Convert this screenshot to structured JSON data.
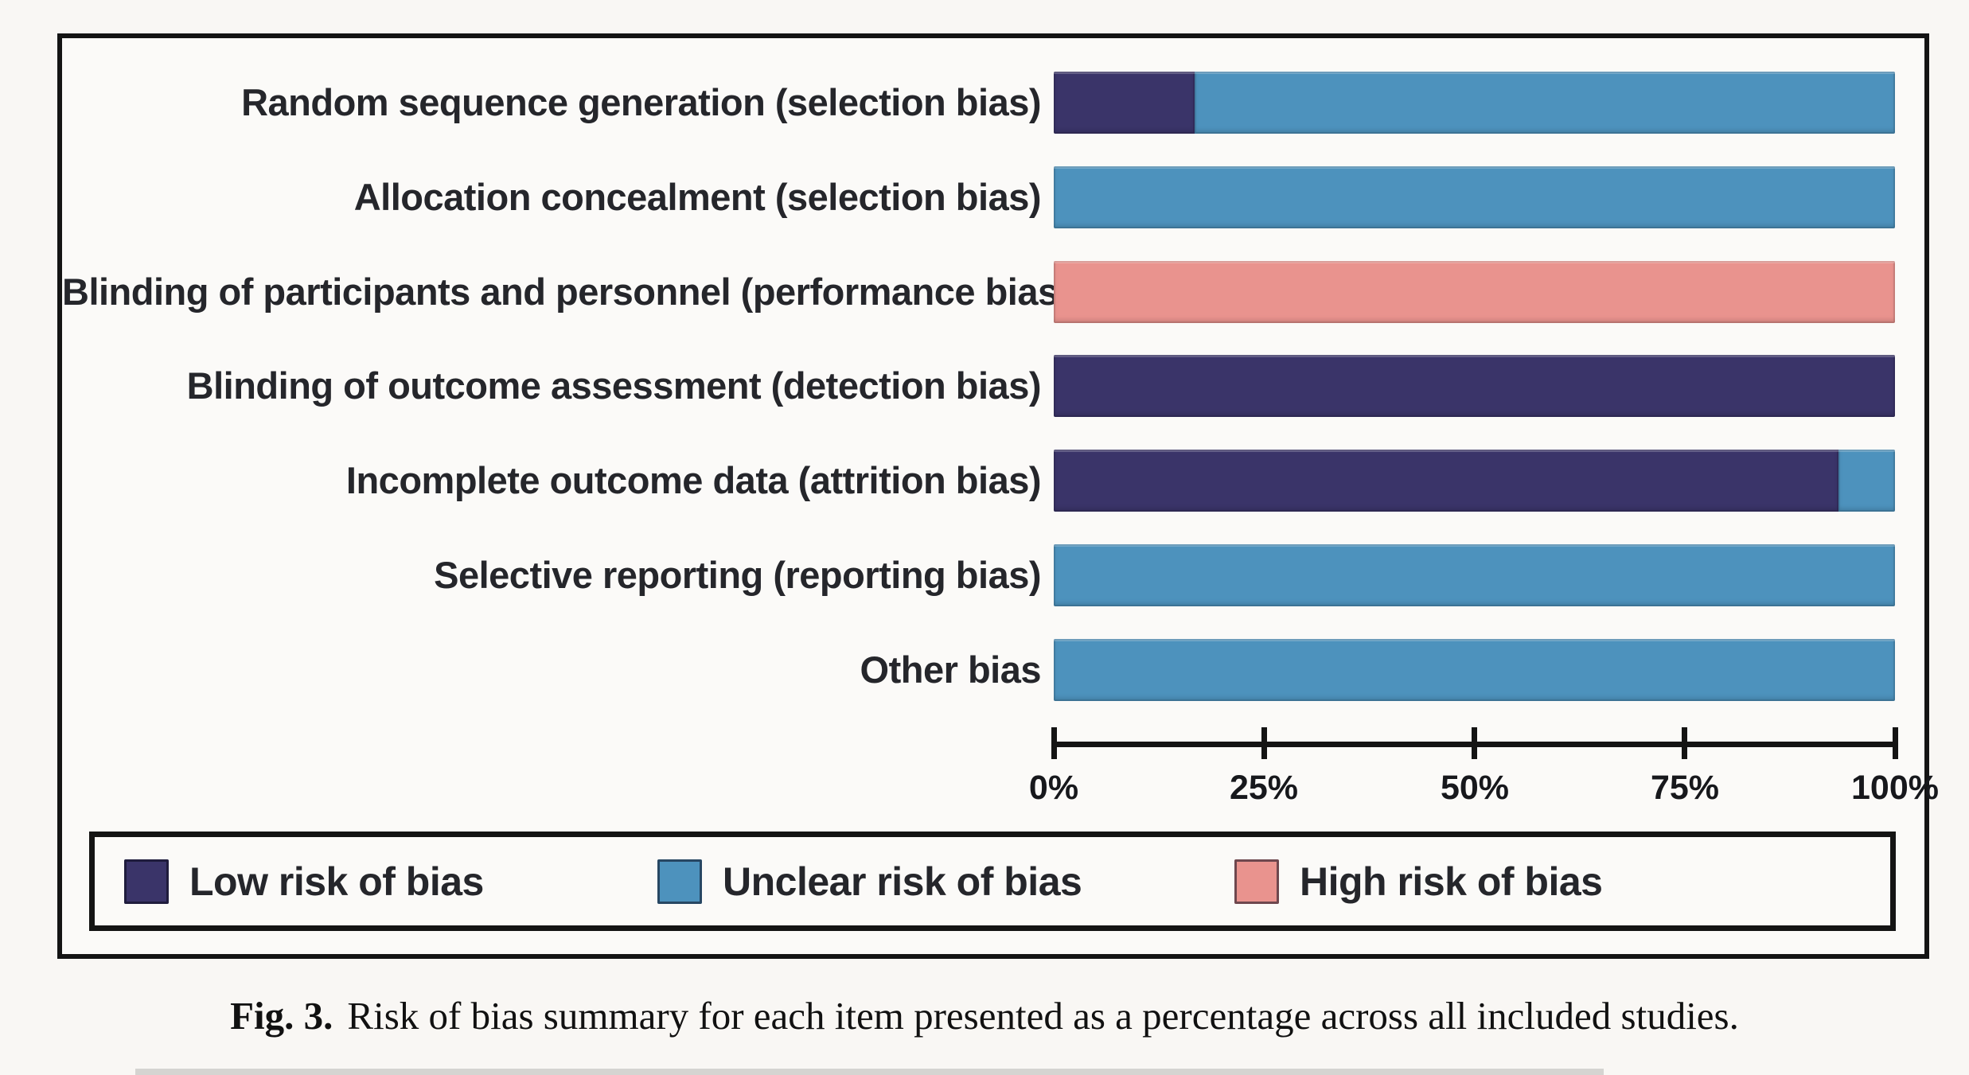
{
  "caption": {
    "prefix": "Fig. 3.",
    "text": "Risk of bias summary for each item presented as a percentage across all included studies."
  },
  "chart_data": {
    "type": "bar",
    "orientation": "horizontal",
    "stacked": true,
    "unit": "percent",
    "xlim": [
      0,
      100
    ],
    "grid": false,
    "legend_position": "bottom-box",
    "colors": {
      "low": "#3a3469",
      "unclear": "#4d92bd",
      "high": "#e9938e"
    },
    "axis": {
      "tick_values": [
        0,
        25,
        50,
        75,
        100
      ],
      "tick_labels": [
        "0%",
        "25%",
        "50%",
        "75%",
        "100%"
      ]
    },
    "categories": [
      "Random sequence generation (selection bias)",
      "Allocation concealment (selection bias)",
      "Blinding of participants and personnel (performance bias)",
      "Blinding of outcome assessment (detection bias)",
      "Incomplete outcome data (attrition bias)",
      "Selective reporting (reporting bias)",
      "Other bias"
    ],
    "series": [
      {
        "name": "Low risk of bias",
        "risk": "low",
        "values": [
          16.7,
          0,
          0,
          100,
          93.3,
          0,
          0
        ]
      },
      {
        "name": "Unclear risk of bias",
        "risk": "unclear",
        "values": [
          83.3,
          100,
          0,
          0,
          6.7,
          100,
          100
        ]
      },
      {
        "name": "High risk of bias",
        "risk": "high",
        "values": [
          0,
          0,
          100,
          0,
          0,
          0,
          0
        ]
      }
    ],
    "rows": [
      {
        "label": "Random sequence generation (selection bias)",
        "segments": [
          {
            "risk": "low",
            "pct": 16.7
          },
          {
            "risk": "unclear",
            "pct": 83.3
          }
        ]
      },
      {
        "label": "Allocation concealment (selection bias)",
        "segments": [
          {
            "risk": "unclear",
            "pct": 100
          }
        ]
      },
      {
        "label": "Blinding of participants and personnel (performance bias)",
        "segments": [
          {
            "risk": "high",
            "pct": 100
          }
        ]
      },
      {
        "label": "Blinding of outcome assessment (detection bias)",
        "segments": [
          {
            "risk": "low",
            "pct": 100
          }
        ]
      },
      {
        "label": "Incomplete outcome data (attrition bias)",
        "segments": [
          {
            "risk": "low",
            "pct": 93.3
          },
          {
            "risk": "unclear",
            "pct": 6.7
          }
        ]
      },
      {
        "label": "Selective reporting (reporting bias)",
        "segments": [
          {
            "risk": "unclear",
            "pct": 100
          }
        ]
      },
      {
        "label": "Other bias",
        "segments": [
          {
            "risk": "unclear",
            "pct": 100
          }
        ]
      }
    ],
    "legend": [
      {
        "label": "Low risk of bias",
        "risk": "low"
      },
      {
        "label": "Unclear risk of bias",
        "risk": "unclear"
      },
      {
        "label": "High risk of bias",
        "risk": "high"
      }
    ]
  }
}
